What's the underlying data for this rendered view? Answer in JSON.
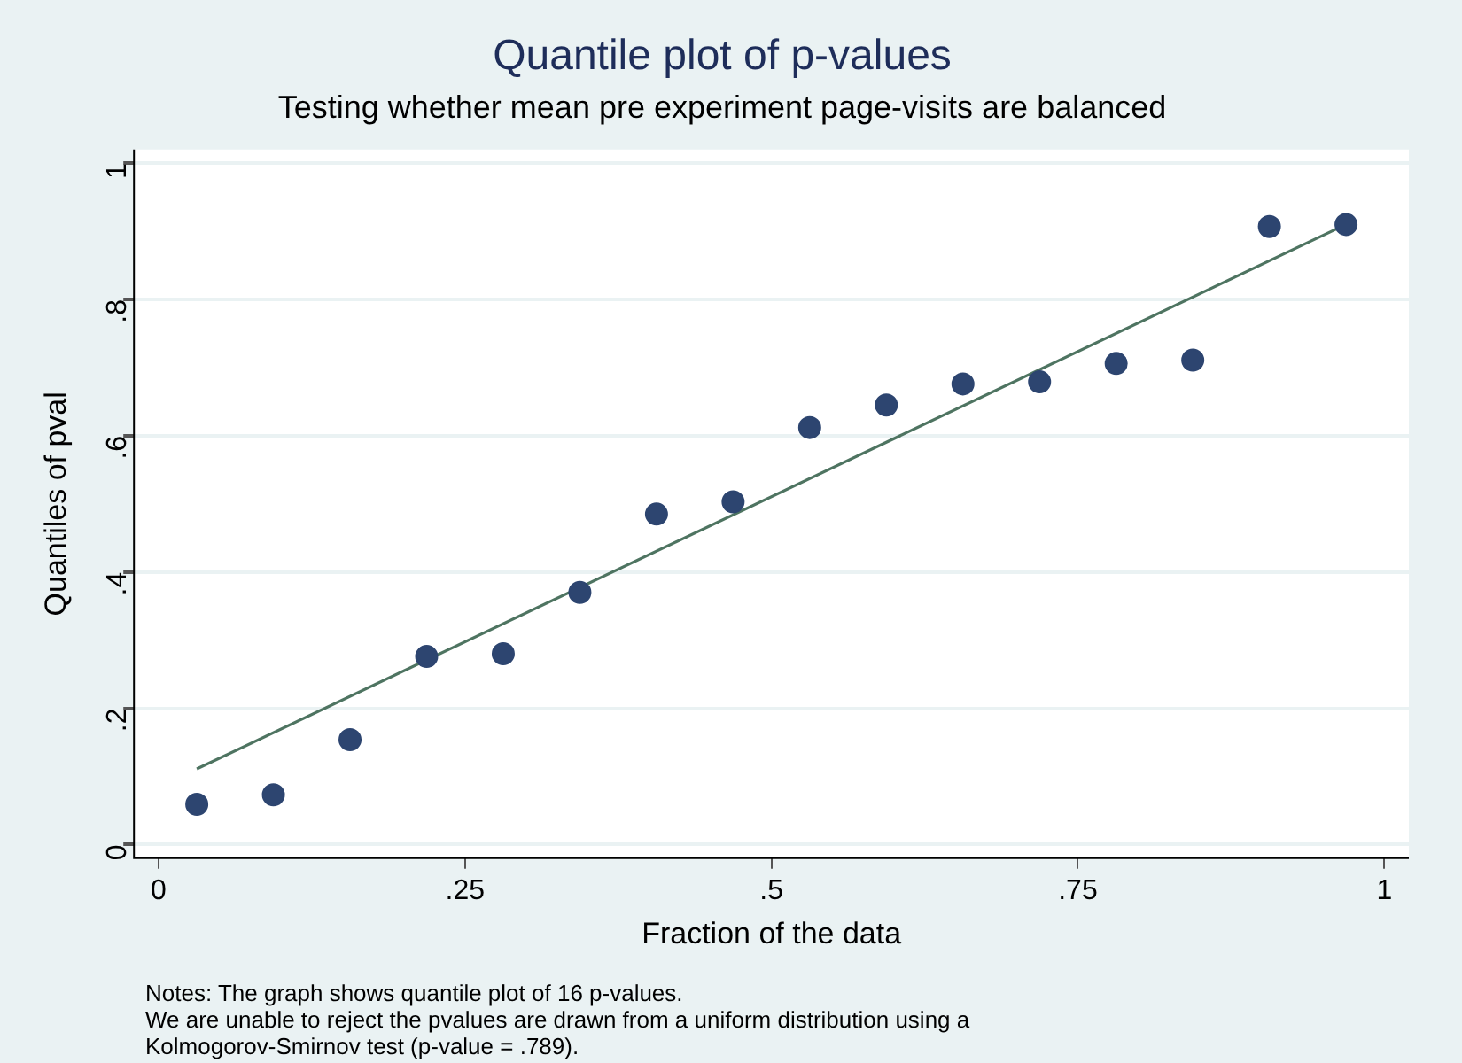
{
  "chart_data": {
    "type": "scatter",
    "title": "Quantile plot of p-values",
    "subtitle": "Testing whether mean pre experiment page-visits are balanced",
    "xlabel": "Fraction of the data",
    "ylabel": "Quantiles of pval",
    "series": [
      {
        "color": "#2d4570",
        "marker": "circle",
        "x": [
          0.03125,
          0.09375,
          0.15625,
          0.21875,
          0.28125,
          0.34375,
          0.40625,
          0.46875,
          0.53125,
          0.59375,
          0.65625,
          0.71875,
          0.78125,
          0.84375,
          0.90625,
          0.96875
        ],
        "values": [
          0.059,
          0.073,
          0.154,
          0.276,
          0.28,
          0.37,
          0.485,
          0.503,
          0.612,
          0.645,
          0.676,
          0.679,
          0.706,
          0.711,
          0.907,
          0.91
        ]
      },
      {
        "type": "line",
        "color": "#4e7461",
        "marker": "none",
        "line_style": "solid",
        "x": [
          0.03125,
          0.96875
        ],
        "values": [
          0.111,
          0.91
        ]
      }
    ],
    "xlim": [
      -0.02,
      1.02
    ],
    "xticks": [
      0,
      {
        "value": 0.25,
        "label": ".25"
      },
      {
        "value": 0.5,
        "label": ".5"
      },
      {
        "value": 0.75,
        "label": ".75"
      },
      1
    ],
    "ylim": [
      -0.02,
      1.02
    ],
    "yticks": [
      0,
      {
        "value": 0.2,
        "label": ".2"
      },
      {
        "value": 0.4,
        "label": ".4"
      },
      {
        "value": 0.6,
        "label": ".6"
      },
      {
        "value": 0.8,
        "label": ".8"
      },
      1
    ],
    "grid": "y",
    "legend": false,
    "annotations": [
      "Notes: The graph shows quantile plot of 16 p-values.",
      "We are unable to reject the pvalues are drawn from a uniform distribution using a",
      "Kolmogorov-Smirnov test (p-value = .789)."
    ]
  }
}
